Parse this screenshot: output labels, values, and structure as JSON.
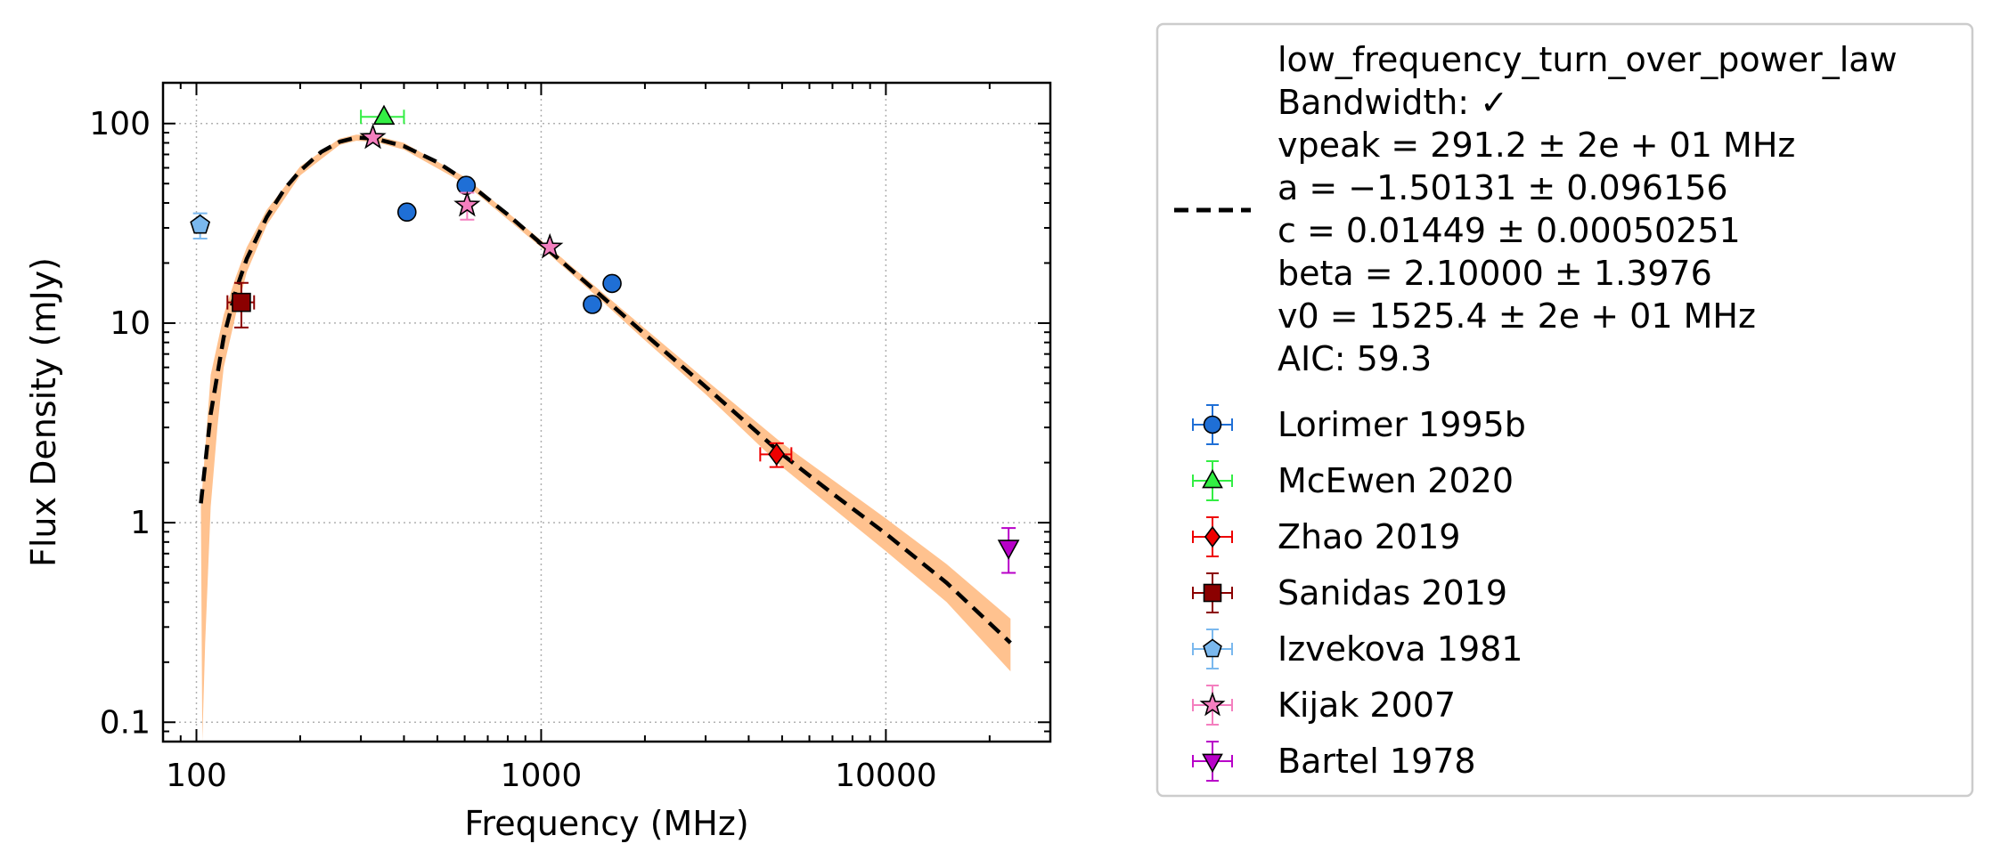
{
  "chart_data": {
    "type": "scatter",
    "xlabel": "Frequency (MHz)",
    "ylabel": "Flux Density (mJy)",
    "xscale": "log",
    "yscale": "log",
    "xlim": [
      80,
      30000
    ],
    "ylim": [
      0.08,
      160
    ],
    "x_ticks": [
      {
        "value": 100,
        "label": "100"
      },
      {
        "value": 1000,
        "label": "1000"
      },
      {
        "value": 10000,
        "label": "10000"
      }
    ],
    "y_ticks": [
      {
        "value": 0.1,
        "label": "0.1"
      },
      {
        "value": 1,
        "label": "1"
      },
      {
        "value": 10,
        "label": "10"
      },
      {
        "value": 100,
        "label": "100"
      }
    ],
    "grid": true,
    "legend_position": "outside-right",
    "fit": {
      "model": "low_frequency_turn_over_power_law",
      "legend_lines": [
        "low_frequency_turn_over_power_law",
        "Bandwidth: ✓",
        "vpeak = 291.2 ± 2e + 01 MHz",
        "a = −1.50131 ± 0.096156",
        "c = 0.01449 ± 0.00050251",
        "beta = 2.10000 ± 1.3976",
        "v0 = 1525.4 ± 2e + 01 MHz",
        "AIC: 59.3"
      ],
      "color": "#000000",
      "band_color": "#ffc28f",
      "curve": [
        [
          103,
          1.25
        ],
        [
          110,
          3.5
        ],
        [
          120,
          8.5
        ],
        [
          130,
          14.5
        ],
        [
          140,
          21
        ],
        [
          160,
          34
        ],
        [
          180,
          47
        ],
        [
          200,
          58
        ],
        [
          230,
          72
        ],
        [
          260,
          81
        ],
        [
          291,
          85
        ],
        [
          330,
          84
        ],
        [
          400,
          77
        ],
        [
          500,
          64
        ],
        [
          600,
          52
        ],
        [
          700,
          42
        ],
        [
          800,
          35
        ],
        [
          1000,
          25
        ],
        [
          1200,
          19
        ],
        [
          1500,
          13.6
        ],
        [
          2000,
          8.8
        ],
        [
          3000,
          4.8
        ],
        [
          5000,
          2.2
        ],
        [
          7000,
          1.4
        ],
        [
          10000,
          0.88
        ],
        [
          15000,
          0.5
        ],
        [
          23000,
          0.25
        ]
      ],
      "band_upper": [
        [
          103,
          1.2
        ],
        [
          110,
          5.5
        ],
        [
          120,
          11
        ],
        [
          130,
          17
        ],
        [
          140,
          24
        ],
        [
          160,
          37
        ],
        [
          200,
          61
        ],
        [
          260,
          84
        ],
        [
          291,
          88
        ],
        [
          330,
          87
        ],
        [
          400,
          80
        ],
        [
          600,
          54
        ],
        [
          1000,
          26
        ],
        [
          1500,
          14.3
        ],
        [
          2000,
          9.4
        ],
        [
          3000,
          5.2
        ],
        [
          5000,
          2.5
        ],
        [
          10000,
          1.05
        ],
        [
          15000,
          0.62
        ],
        [
          23000,
          0.33
        ]
      ],
      "band_lower": [
        [
          23000,
          0.18
        ],
        [
          15000,
          0.4
        ],
        [
          10000,
          0.72
        ],
        [
          5000,
          1.9
        ],
        [
          3000,
          4.4
        ],
        [
          2000,
          8.2
        ],
        [
          1500,
          12.9
        ],
        [
          1000,
          24
        ],
        [
          600,
          50
        ],
        [
          400,
          74
        ],
        [
          330,
          81
        ],
        [
          291,
          82
        ],
        [
          260,
          78
        ],
        [
          200,
          55
        ],
        [
          160,
          31
        ],
        [
          140,
          18
        ],
        [
          130,
          11
        ],
        [
          120,
          6
        ],
        [
          115,
          3
        ],
        [
          110,
          1.2
        ],
        [
          106,
          0.25
        ],
        [
          104,
          0.08
        ]
      ]
    },
    "series": [
      {
        "name": "Lorimer 1995b",
        "marker": "circle",
        "color": "#1f6fd6",
        "errcolor": "#1f6fd6",
        "points": [
          {
            "x": 408,
            "y": 36,
            "yerr": 0,
            "xerr": 0
          },
          {
            "x": 606,
            "y": 49,
            "yerr": 0,
            "xerr": 0
          },
          {
            "x": 1408,
            "y": 12.4,
            "yerr": 0,
            "xerr": 0
          },
          {
            "x": 1606,
            "y": 15.8,
            "yerr": 0,
            "xerr": 0
          }
        ]
      },
      {
        "name": "McEwen 2020",
        "marker": "triangle-up",
        "color": "#33ee44",
        "errcolor": "#33ee44",
        "points": [
          {
            "x": 350,
            "y": 108,
            "yerr": 0,
            "xerr": 50
          }
        ]
      },
      {
        "name": "Zhao 2019",
        "marker": "diamond",
        "color": "#ee0000",
        "errcolor": "#ee0000",
        "points": [
          {
            "x": 4820,
            "y": 2.2,
            "yerr": 0.3,
            "xerr": 500
          }
        ]
      },
      {
        "name": "Sanidas 2019",
        "marker": "square",
        "color": "#8b0000",
        "errcolor": "#8b0000",
        "points": [
          {
            "x": 135,
            "y": 12.7,
            "yerr": 3.2,
            "xerr": 12
          }
        ]
      },
      {
        "name": "Izvekova 1981",
        "marker": "pentagon",
        "color": "#7ab8ee",
        "errcolor": "#7ab8ee",
        "points": [
          {
            "x": 102.5,
            "y": 31,
            "yerr": 4.5,
            "xerr": 0
          }
        ]
      },
      {
        "name": "Kijak 2007",
        "marker": "star",
        "color": "#f47fbf",
        "errcolor": "#f47fbf",
        "points": [
          {
            "x": 325,
            "y": 85,
            "yerr": 0,
            "xerr": 0
          },
          {
            "x": 610,
            "y": 39,
            "yerr": 6,
            "xerr": 0
          },
          {
            "x": 1060,
            "y": 24,
            "yerr": 0,
            "xerr": 0
          }
        ]
      },
      {
        "name": "Bartel 1978",
        "marker": "triangle-down",
        "color": "#b800c8",
        "errcolor": "#b800c8",
        "points": [
          {
            "x": 22700,
            "y": 0.75,
            "yerr": 0.19,
            "xerr": 0
          }
        ]
      }
    ]
  }
}
